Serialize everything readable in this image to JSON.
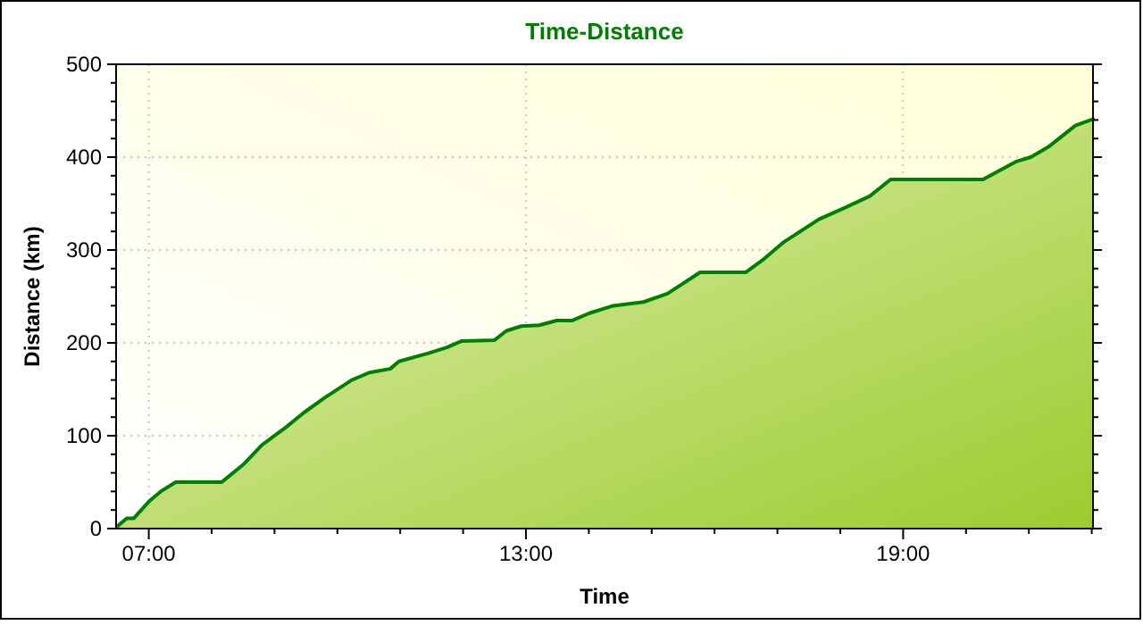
{
  "chart_data": {
    "type": "area",
    "title": "Time-Distance",
    "xlabel": "Time",
    "ylabel": "Distance (km)",
    "xlim": [
      6.48,
      22.02
    ],
    "ylim": [
      0,
      500
    ],
    "xticks": [
      {
        "value": 7,
        "label": "07:00"
      },
      {
        "value": 8,
        "label": null
      },
      {
        "value": 9,
        "label": null
      },
      {
        "value": 10,
        "label": null
      },
      {
        "value": 11,
        "label": null
      },
      {
        "value": 12,
        "label": null
      },
      {
        "value": 13,
        "label": "13:00"
      },
      {
        "value": 14,
        "label": null
      },
      {
        "value": 15,
        "label": null
      },
      {
        "value": 16,
        "label": null
      },
      {
        "value": 17,
        "label": null
      },
      {
        "value": 18,
        "label": null
      },
      {
        "value": 19,
        "label": "19:00"
      },
      {
        "value": 20,
        "label": null
      },
      {
        "value": 21,
        "label": null
      },
      {
        "value": 22,
        "label": null
      }
    ],
    "yticks": [
      0,
      100,
      200,
      300,
      400,
      500
    ],
    "grid": true,
    "series": [
      {
        "color": "#008000",
        "x": [
          6.51,
          6.65,
          6.76,
          7.0,
          7.19,
          7.43,
          8.16,
          8.52,
          8.8,
          9.18,
          9.47,
          9.8,
          10.23,
          10.51,
          10.84,
          10.98,
          11.46,
          11.74,
          11.98,
          12.5,
          12.69,
          12.93,
          13.21,
          13.49,
          13.73,
          14.01,
          14.39,
          14.87,
          15.25,
          15.77,
          16.5,
          16.76,
          17.09,
          17.66,
          18.09,
          18.47,
          18.8,
          20.27,
          20.79,
          21.03,
          21.31,
          21.74,
          22.02
        ],
        "values": [
          3,
          11,
          11,
          29,
          40,
          50,
          50,
          70,
          90,
          109,
          125,
          141,
          160,
          168,
          172,
          180,
          189,
          195,
          202,
          203,
          213,
          218,
          219,
          224,
          224,
          232,
          240,
          244,
          253,
          276,
          276,
          289,
          308,
          333,
          346,
          358,
          376,
          376,
          395,
          400,
          411,
          434,
          441
        ]
      }
    ]
  }
}
